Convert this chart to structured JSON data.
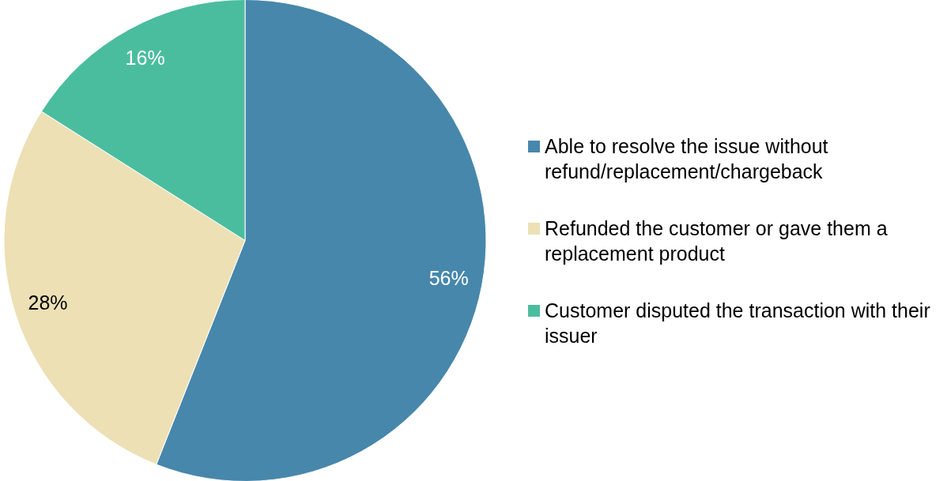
{
  "chart_data": {
    "type": "pie",
    "categories": [
      "Able to resolve the issue without refund/replacement/chargeback",
      "Refunded the customer or gave them a replacement product",
      "Customer disputed the transaction with their issuer"
    ],
    "values": [
      56,
      28,
      16
    ],
    "colors": [
      "#4787ab",
      "#ede0b5",
      "#4bbd9f"
    ],
    "value_labels": [
      "56%",
      "28%",
      "16%"
    ],
    "legend": "right"
  }
}
